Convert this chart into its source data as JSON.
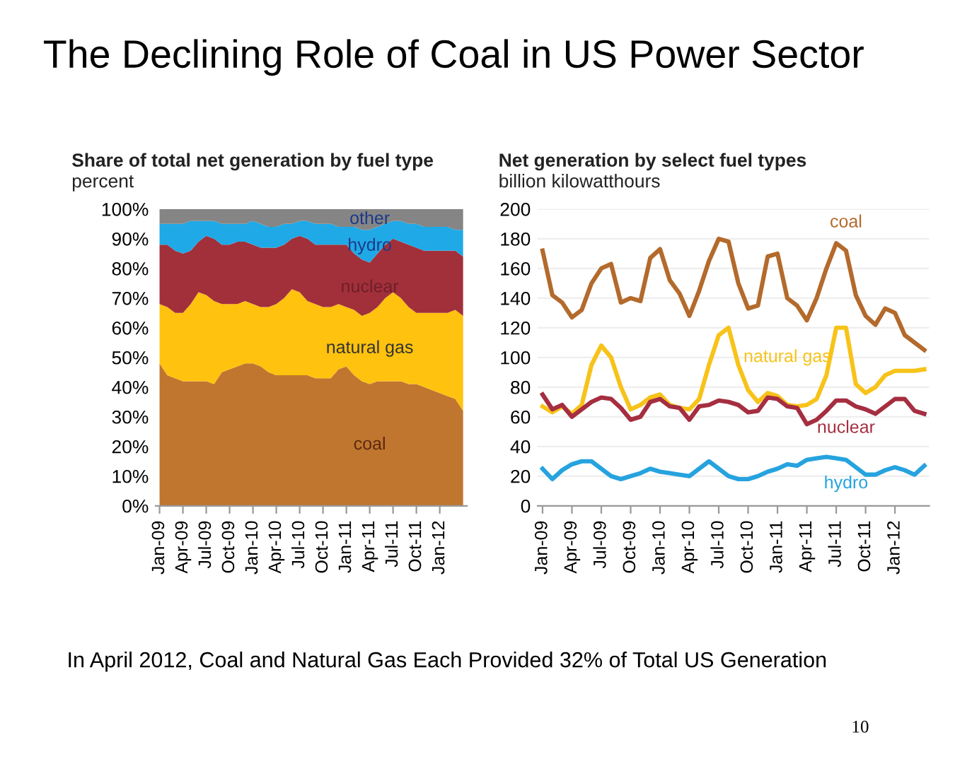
{
  "chart_data": [
    {
      "type": "area",
      "stacked": true,
      "title": "Share of total net generation by fuel type",
      "ylabel": "percent",
      "annotations": [
        "The Declining Role of Coal in US Power Sector",
        "In April 2012, Coal and Natural Gas Each Provided 32% of Total US Generation",
        "10"
      ],
      "categories": [
        "Jan-09",
        null,
        null,
        "Apr-09",
        null,
        null,
        "Jul-09",
        null,
        null,
        "Oct-09",
        null,
        null,
        "Jan-10",
        null,
        null,
        "Apr-10",
        null,
        null,
        "Jul-10",
        null,
        null,
        "Oct-10",
        null,
        null,
        "Jan-11",
        null,
        null,
        "Apr-11",
        null,
        null,
        "Jul-11",
        null,
        null,
        "Oct-11",
        null,
        null,
        "Jan-12",
        null,
        null,
        null
      ],
      "ylim": [
        0,
        100
      ],
      "yticks": [
        {
          "value": 0,
          "label": "0%"
        },
        {
          "value": 10,
          "label": "10%"
        },
        {
          "value": 20,
          "label": "20%"
        },
        {
          "value": 30,
          "label": "30%"
        },
        {
          "value": 40,
          "label": "40%"
        },
        {
          "value": 50,
          "label": "50%"
        },
        {
          "value": 60,
          "label": "60%"
        },
        {
          "value": 70,
          "label": "70%"
        },
        {
          "value": 80,
          "label": "80%"
        },
        {
          "value": 90,
          "label": "90%"
        },
        {
          "value": 100,
          "label": "100%"
        }
      ],
      "grid": false,
      "legend": false,
      "series": [
        {
          "name": "coal",
          "color": "#c0762e",
          "values": [
            48,
            44,
            43,
            42,
            42,
            42,
            42,
            41,
            45,
            46,
            47,
            48,
            48,
            47,
            45,
            44,
            44,
            44,
            44,
            44,
            43,
            43,
            43,
            46,
            47,
            44,
            42,
            41,
            42,
            42,
            42,
            42,
            41,
            41,
            40,
            39,
            38,
            37,
            36,
            32
          ]
        },
        {
          "name": "natural gas",
          "color": "#ffc20e",
          "values": [
            20,
            23,
            22,
            23,
            26,
            30,
            29,
            28,
            23,
            22,
            21,
            21,
            20,
            20,
            22,
            24,
            26,
            29,
            28,
            25,
            25,
            24,
            24,
            22,
            20,
            22,
            22,
            24,
            25,
            28,
            30,
            28,
            26,
            24,
            25,
            26,
            27,
            28,
            30,
            32
          ]
        },
        {
          "name": "nuclear",
          "color": "#a2303a",
          "values": [
            20,
            21,
            21,
            20,
            18,
            17,
            20,
            21,
            20,
            20,
            21,
            20,
            20,
            20,
            20,
            19,
            18,
            17,
            19,
            21,
            20,
            21,
            21,
            20,
            21,
            19,
            19,
            17,
            18,
            18,
            18,
            19,
            21,
            22,
            21,
            21,
            21,
            21,
            20,
            20
          ]
        },
        {
          "name": "hydro",
          "color": "#1fa9e6",
          "values": [
            7,
            7,
            9,
            10,
            10,
            7,
            5,
            6,
            7,
            7,
            6,
            6,
            8,
            8,
            7,
            7,
            7,
            5,
            5,
            6,
            7,
            7,
            7,
            6,
            6,
            9,
            10,
            11,
            9,
            7,
            6,
            7,
            7,
            8,
            8,
            8,
            8,
            8,
            7,
            9
          ]
        },
        {
          "name": "other",
          "color": "#858585",
          "values": [
            5,
            5,
            5,
            5,
            4,
            4,
            4,
            4,
            5,
            5,
            5,
            5,
            4,
            5,
            6,
            6,
            5,
            5,
            4,
            4,
            5,
            5,
            5,
            6,
            6,
            6,
            7,
            7,
            6,
            5,
            4,
            4,
            5,
            5,
            6,
            6,
            6,
            6,
            7,
            7
          ]
        }
      ]
    },
    {
      "type": "line",
      "title": "Net generation by select fuel types",
      "ylabel": "billion kilowatthours",
      "categories": [
        "Jan-09",
        null,
        null,
        "Apr-09",
        null,
        null,
        "Jul-09",
        null,
        null,
        "Oct-09",
        null,
        null,
        "Jan-10",
        null,
        null,
        "Apr-10",
        null,
        null,
        "Jul-10",
        null,
        null,
        "Oct-10",
        null,
        null,
        "Jan-11",
        null,
        null,
        "Apr-11",
        null,
        null,
        "Jul-11",
        null,
        null,
        "Oct-11",
        null,
        null,
        "Jan-12",
        null,
        null,
        null
      ],
      "ylim": [
        0,
        200
      ],
      "yticks": [
        0,
        20,
        40,
        60,
        80,
        100,
        120,
        140,
        160,
        180,
        200
      ],
      "grid": "y",
      "legend": false,
      "marker": "none",
      "line_style": "solid",
      "series": [
        {
          "name": "coal",
          "color": "#b36a2c",
          "values": [
            172,
            142,
            137,
            127,
            132,
            150,
            160,
            163,
            137,
            140,
            138,
            167,
            173,
            152,
            143,
            128,
            145,
            165,
            180,
            178,
            150,
            133,
            135,
            168,
            170,
            140,
            135,
            125,
            140,
            160,
            177,
            172,
            142,
            128,
            122,
            133,
            130,
            115,
            110,
            105
          ]
        },
        {
          "name": "natural gas",
          "color": "#f7c31a",
          "values": [
            67,
            63,
            67,
            62,
            68,
            95,
            108,
            100,
            80,
            65,
            68,
            73,
            75,
            68,
            66,
            65,
            72,
            95,
            115,
            120,
            95,
            78,
            70,
            76,
            74,
            68,
            67,
            68,
            72,
            88,
            120,
            120,
            82,
            76,
            80,
            88,
            91,
            91,
            91,
            92
          ]
        },
        {
          "name": "nuclear",
          "color": "#a52e40",
          "values": [
            75,
            65,
            68,
            60,
            65,
            70,
            73,
            72,
            66,
            58,
            60,
            70,
            72,
            67,
            66,
            58,
            67,
            68,
            71,
            70,
            68,
            63,
            64,
            73,
            72,
            67,
            66,
            55,
            58,
            64,
            71,
            71,
            67,
            65,
            62,
            67,
            72,
            72,
            64,
            62
          ]
        },
        {
          "name": "hydro",
          "color": "#26a3df",
          "values": [
            25,
            18,
            24,
            28,
            30,
            30,
            25,
            20,
            18,
            20,
            22,
            25,
            23,
            22,
            21,
            20,
            25,
            30,
            25,
            20,
            18,
            18,
            20,
            23,
            25,
            28,
            27,
            31,
            32,
            33,
            32,
            31,
            26,
            21,
            21,
            24,
            26,
            24,
            21,
            27
          ]
        }
      ]
    }
  ]
}
